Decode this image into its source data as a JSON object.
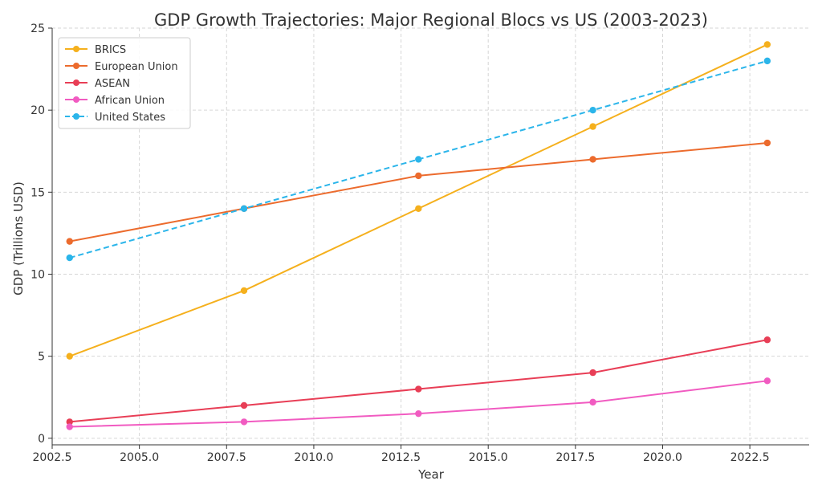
{
  "chart_data": {
    "type": "line",
    "title": "GDP Growth Trajectories: Major Regional Blocs vs US (2003-2023)",
    "xlabel": "Year",
    "ylabel": "GDP (Trillions USD)",
    "xlim": [
      2002.5,
      2024.2
    ],
    "ylim": [
      -0.4,
      25
    ],
    "x_ticks": [
      "2002.5",
      "2005.0",
      "2007.5",
      "2010.0",
      "2012.5",
      "2015.0",
      "2017.5",
      "2020.0",
      "2022.5"
    ],
    "y_ticks": [
      "0",
      "5",
      "10",
      "15",
      "20",
      "25"
    ],
    "grid": true,
    "legend_position": "top-left",
    "x": [
      2003,
      2008,
      2013,
      2018,
      2023
    ],
    "series": [
      {
        "name": "BRICS",
        "values": [
          5,
          9,
          14,
          19,
          24
        ],
        "color": "#f5b01d",
        "dashed": false
      },
      {
        "name": "European Union",
        "values": [
          12,
          14,
          16,
          17,
          18
        ],
        "color": "#ec6b2d",
        "dashed": false
      },
      {
        "name": "ASEAN",
        "values": [
          1,
          2,
          3,
          4,
          6
        ],
        "color": "#e83e56",
        "dashed": false
      },
      {
        "name": "African Union",
        "values": [
          0.7,
          1,
          1.5,
          2.2,
          3.5
        ],
        "color": "#f15bc1",
        "dashed": false
      },
      {
        "name": "United States",
        "values": [
          11,
          14,
          17,
          20,
          23
        ],
        "color": "#2bb5ea",
        "dashed": true
      }
    ]
  }
}
